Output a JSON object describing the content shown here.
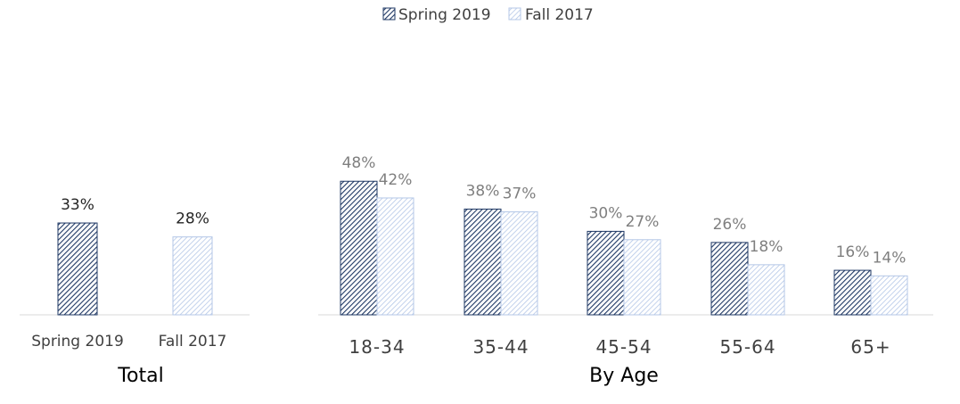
{
  "chart_data": [
    {
      "type": "bar",
      "title": "Total",
      "categories": [
        "Spring 2019",
        "Fall 2017"
      ],
      "values": [
        33,
        28
      ],
      "data_labels": [
        "33%",
        "28%"
      ],
      "ylim": [
        0,
        80
      ],
      "grid": false,
      "legend": "top-center"
    },
    {
      "type": "bar",
      "title": "By Age",
      "categories": [
        "18-34",
        "35-44",
        "45-54",
        "55-64",
        "65+"
      ],
      "series": [
        {
          "name": "Spring 2019",
          "values": [
            48,
            38,
            30,
            26,
            16
          ],
          "labels": [
            "48%",
            "38%",
            "30%",
            "26%",
            "16%"
          ]
        },
        {
          "name": "Fall 2017",
          "values": [
            42,
            37,
            27,
            18,
            14
          ],
          "labels": [
            "42%",
            "37%",
            "27%",
            "18%",
            "14%"
          ]
        }
      ],
      "ylim": [
        0,
        80
      ],
      "grid": false,
      "legend": "top-center"
    }
  ],
  "legend": [
    {
      "name": "Spring 2019",
      "color": "#1f3864"
    },
    {
      "name": "Fall 2017",
      "color": "#b4c7e7"
    }
  ],
  "colors": {
    "spring_stripe": "#1f3864",
    "fall_stripe": "#b4c7e7",
    "axis": "#d9d9d9",
    "label_dark": "#262626",
    "label_gray": "#7f7f7f"
  }
}
